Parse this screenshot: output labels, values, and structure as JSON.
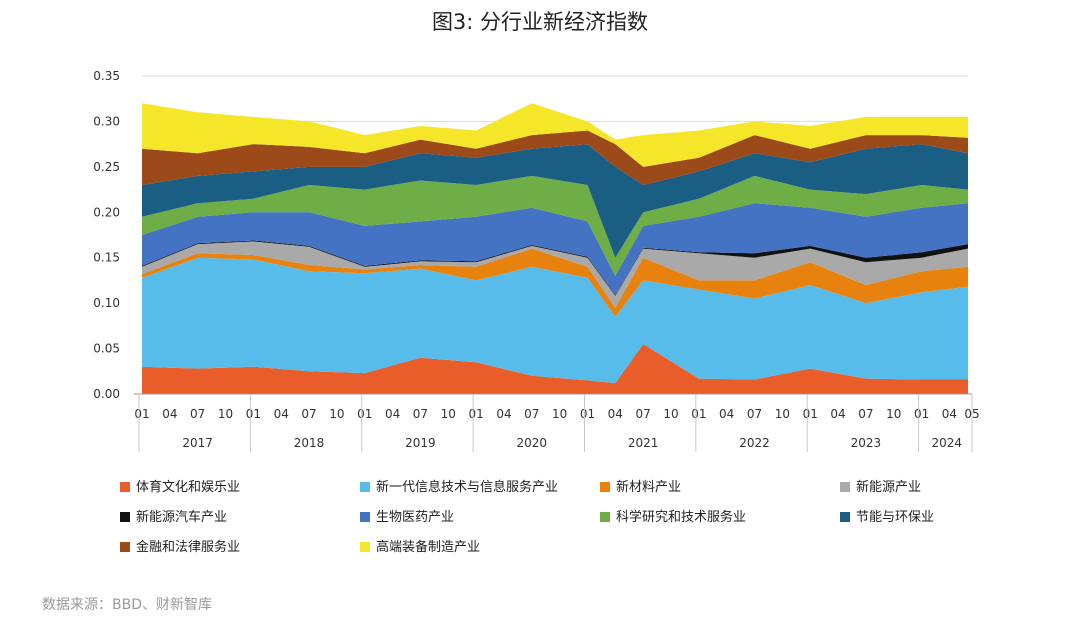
{
  "chart_data": {
    "type": "area",
    "title": "图3: 分行业新经济指数",
    "stacked": true,
    "ylim": [
      0,
      0.35
    ],
    "yticks": [
      "0.00",
      "0.05",
      "0.10",
      "0.15",
      "0.20",
      "0.25",
      "0.30",
      "0.35"
    ],
    "xlabel": "",
    "ylabel": "",
    "grid": "y",
    "legend_position": "bottom",
    "x_month_labels": [
      "01",
      "04",
      "07",
      "10",
      "01",
      "04",
      "07",
      "10",
      "01",
      "04",
      "07",
      "10",
      "01",
      "04",
      "07",
      "10",
      "01",
      "04",
      "07",
      "10",
      "01",
      "04",
      "07",
      "10",
      "01",
      "04",
      "07",
      "10",
      "01",
      "04",
      "05"
    ],
    "x_year_labels": [
      "2017",
      "2018",
      "2019",
      "2020",
      "2021",
      "2022",
      "2023",
      "2024"
    ],
    "cumulative_levels": {
      "x_months_from_2017_01": [
        0,
        6,
        12,
        18,
        24,
        30,
        36,
        42,
        48,
        51,
        54,
        60,
        66,
        72,
        78,
        84,
        89
      ],
      "体育文化和娱乐业": [
        0.03,
        0.028,
        0.03,
        0.025,
        0.023,
        0.04,
        0.035,
        0.02,
        0.015,
        0.012,
        0.055,
        0.017,
        0.016,
        0.028,
        0.017,
        0.016,
        0.016
      ],
      "新一代信息技术与信息服务产业": [
        0.128,
        0.15,
        0.148,
        0.135,
        0.133,
        0.138,
        0.125,
        0.14,
        0.128,
        0.085,
        0.125,
        0.115,
        0.105,
        0.12,
        0.1,
        0.112,
        0.118
      ],
      "新材料产业": [
        0.132,
        0.155,
        0.153,
        0.142,
        0.137,
        0.142,
        0.14,
        0.16,
        0.14,
        0.095,
        0.15,
        0.125,
        0.125,
        0.145,
        0.12,
        0.135,
        0.14
      ],
      "新能源产业": [
        0.14,
        0.165,
        0.168,
        0.162,
        0.14,
        0.146,
        0.145,
        0.163,
        0.15,
        0.108,
        0.16,
        0.155,
        0.15,
        0.16,
        0.145,
        0.15,
        0.16
      ],
      "新能源汽车产业": [
        0.141,
        0.166,
        0.169,
        0.163,
        0.141,
        0.147,
        0.146,
        0.164,
        0.151,
        0.109,
        0.161,
        0.156,
        0.155,
        0.163,
        0.15,
        0.156,
        0.165
      ],
      "生物医药产业": [
        0.175,
        0.195,
        0.2,
        0.2,
        0.185,
        0.19,
        0.195,
        0.205,
        0.19,
        0.13,
        0.185,
        0.195,
        0.21,
        0.205,
        0.195,
        0.205,
        0.21
      ],
      "科学研究和技术服务业": [
        0.195,
        0.21,
        0.215,
        0.23,
        0.225,
        0.235,
        0.23,
        0.24,
        0.23,
        0.15,
        0.2,
        0.215,
        0.24,
        0.225,
        0.22,
        0.23,
        0.225
      ],
      "节能与环保业": [
        0.23,
        0.24,
        0.245,
        0.25,
        0.25,
        0.265,
        0.26,
        0.27,
        0.275,
        0.25,
        0.23,
        0.245,
        0.265,
        0.255,
        0.27,
        0.275,
        0.265
      ],
      "金融和法律服务业": [
        0.27,
        0.265,
        0.275,
        0.272,
        0.265,
        0.28,
        0.27,
        0.285,
        0.29,
        0.275,
        0.25,
        0.26,
        0.285,
        0.27,
        0.285,
        0.285,
        0.282
      ],
      "高端装备制造产业": [
        0.32,
        0.31,
        0.305,
        0.3,
        0.285,
        0.295,
        0.29,
        0.32,
        0.3,
        0.28,
        0.285,
        0.29,
        0.3,
        0.295,
        0.305,
        0.305,
        0.305
      ]
    },
    "series": [
      {
        "name": "体育文化和娱乐业",
        "color": "#E85D2A"
      },
      {
        "name": "新一代信息技术与信息服务产业",
        "color": "#58BCEB"
      },
      {
        "name": "新材料产业",
        "color": "#E8820E"
      },
      {
        "name": "新能源产业",
        "color": "#A9A9A9"
      },
      {
        "name": "新能源汽车产业",
        "color": "#111111"
      },
      {
        "name": "生物医药产业",
        "color": "#4573C4"
      },
      {
        "name": "科学研究和技术服务业",
        "color": "#6FAD47"
      },
      {
        "name": "节能与环保业",
        "color": "#1B5E84"
      },
      {
        "name": "金融和法律服务业",
        "color": "#9C4A1A"
      },
      {
        "name": "高端装备制造产业",
        "color": "#F5E62A"
      }
    ]
  },
  "source_text": "数据来源：BBD、财新智库"
}
